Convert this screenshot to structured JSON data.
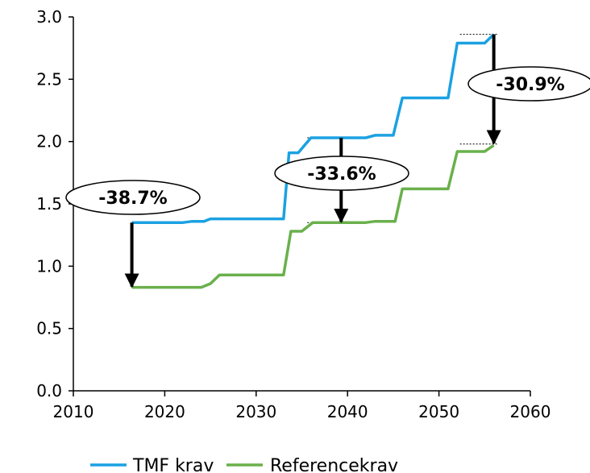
{
  "chart_data": {
    "type": "line",
    "title": "",
    "xlabel": "",
    "ylabel": "",
    "xlim": [
      2010,
      2060
    ],
    "ylim": [
      0,
      3
    ],
    "x_ticks": [
      2010,
      2020,
      2030,
      2040,
      2050,
      2060
    ],
    "y_ticks": [
      0,
      0.5,
      1,
      1.5,
      2,
      2.5,
      3
    ],
    "x_tick_labels": [
      "2010",
      "2020",
      "2030",
      "2040",
      "2050",
      "2060"
    ],
    "y_tick_labels": [
      "0.0",
      "0.5",
      "1.0",
      "1.5",
      "2.0",
      "2.5",
      "3.0"
    ],
    "grid": false,
    "legend_position": "bottom",
    "series": [
      {
        "name": "TMF krav",
        "color": "#1ba1e2",
        "points": [
          [
            2016.4,
            1.35
          ],
          [
            2022,
            1.35
          ],
          [
            2023,
            1.36
          ],
          [
            2024.3,
            1.36
          ],
          [
            2025,
            1.38
          ],
          [
            2033,
            1.38
          ],
          [
            2033.6,
            1.91
          ],
          [
            2034.6,
            1.91
          ],
          [
            2035.3,
            1.97
          ],
          [
            2036,
            2.03
          ],
          [
            2042,
            2.03
          ],
          [
            2043,
            2.05
          ],
          [
            2045,
            2.05
          ],
          [
            2046,
            2.35
          ],
          [
            2051,
            2.35
          ],
          [
            2052,
            2.79
          ],
          [
            2055,
            2.79
          ],
          [
            2056,
            2.86
          ]
        ]
      },
      {
        "name": "Referencekrav",
        "color": "#6ab04c",
        "points": [
          [
            2016.4,
            0.83
          ],
          [
            2024,
            0.83
          ],
          [
            2025,
            0.86
          ],
          [
            2026,
            0.93
          ],
          [
            2033,
            0.93
          ],
          [
            2033.8,
            1.28
          ],
          [
            2035,
            1.28
          ],
          [
            2036.2,
            1.35
          ],
          [
            2042,
            1.35
          ],
          [
            2043,
            1.36
          ],
          [
            2045.2,
            1.36
          ],
          [
            2046,
            1.62
          ],
          [
            2051,
            1.62
          ],
          [
            2052,
            1.92
          ],
          [
            2055,
            1.92
          ],
          [
            2056,
            1.97
          ]
        ]
      }
    ],
    "annotations": [
      {
        "label": "-38.7%",
        "x": 2016.4,
        "from": 1.35,
        "to": 0.83
      },
      {
        "label": "-33.6%",
        "x": 2039.3,
        "from": 2.03,
        "to": 1.35
      },
      {
        "label": "-30.9%",
        "x": 2056,
        "from": 2.86,
        "to": 1.98
      }
    ]
  }
}
